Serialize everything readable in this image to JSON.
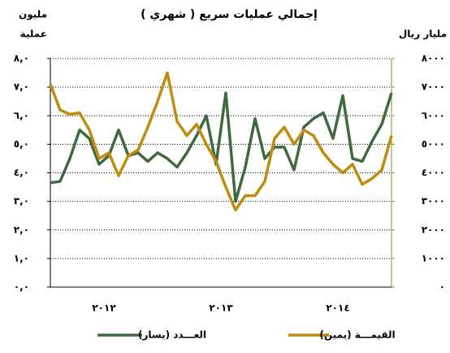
{
  "chart_data": {
    "type": "line",
    "title": "إجمالي عمليات سريع ( شهري )",
    "y_label": [
      "مليون",
      "عملية"
    ],
    "y2_label": "مليار ريال",
    "categories": [
      null,
      null,
      null,
      null,
      null,
      "٢٠١٢",
      null,
      null,
      null,
      null,
      null,
      null,
      null,
      null,
      null,
      null,
      null,
      "٢٠١٣",
      null,
      null,
      null,
      null,
      null,
      null,
      null,
      null,
      null,
      null,
      null,
      "٢٠١٤",
      null,
      null,
      null,
      null,
      null,
      null
    ],
    "ylim": [
      0,
      8
    ],
    "yticks": [
      {
        "value": 0,
        "label": "٠,٠"
      },
      {
        "value": 1,
        "label": "١,٠"
      },
      {
        "value": 2,
        "label": "٢,٠"
      },
      {
        "value": 3,
        "label": "٣,٠"
      },
      {
        "value": 4,
        "label": "٤,٠"
      },
      {
        "value": 5,
        "label": "٥,٠"
      },
      {
        "value": 6,
        "label": "٦,٠"
      },
      {
        "value": 7,
        "label": "٧,٠"
      },
      {
        "value": 8,
        "label": "٨,٠"
      }
    ],
    "y2lim": [
      0,
      8000
    ],
    "y2ticks": [
      {
        "value": 0,
        "label": "٠"
      },
      {
        "value": 1000,
        "label": "١٠٠٠"
      },
      {
        "value": 2000,
        "label": "٢٠٠٠"
      },
      {
        "value": 3000,
        "label": "٣٠٠٠"
      },
      {
        "value": 4000,
        "label": "٤٠٠٠"
      },
      {
        "value": 5000,
        "label": "٥٠٠٠"
      },
      {
        "value": 6000,
        "label": "٦٠٠٠"
      },
      {
        "value": 7000,
        "label": "٧٠٠٠"
      },
      {
        "value": 8000,
        "label": "٨٠٠٠"
      }
    ],
    "grid": true,
    "series": [
      {
        "name": "العـــدد (يسار)",
        "color": "#3f6a40",
        "axis": "y",
        "values": [
          3.65,
          3.7,
          4.5,
          5.5,
          5.2,
          4.3,
          4.6,
          5.5,
          4.6,
          4.7,
          4.4,
          4.7,
          4.5,
          4.2,
          4.7,
          5.3,
          6.0,
          4.3,
          6.8,
          3.0,
          4.2,
          5.9,
          4.5,
          4.9,
          4.9,
          4.1,
          5.6,
          5.9,
          6.1,
          5.2,
          6.7,
          4.5,
          4.4,
          5.1,
          5.7,
          6.8
        ]
      },
      {
        "name": "القيمـــة (يمين)",
        "color": "#bf8c10",
        "axis": "y2",
        "values": [
          7100,
          6200,
          6050,
          6100,
          5500,
          4500,
          4700,
          3900,
          4600,
          4800,
          5600,
          6500,
          7500,
          5800,
          5300,
          5700,
          5000,
          4400,
          3500,
          2700,
          3200,
          3200,
          3700,
          5200,
          5600,
          5000,
          5500,
          5300,
          4700,
          4300,
          4000,
          4300,
          3600,
          3800,
          4100,
          5300
        ]
      }
    ]
  }
}
